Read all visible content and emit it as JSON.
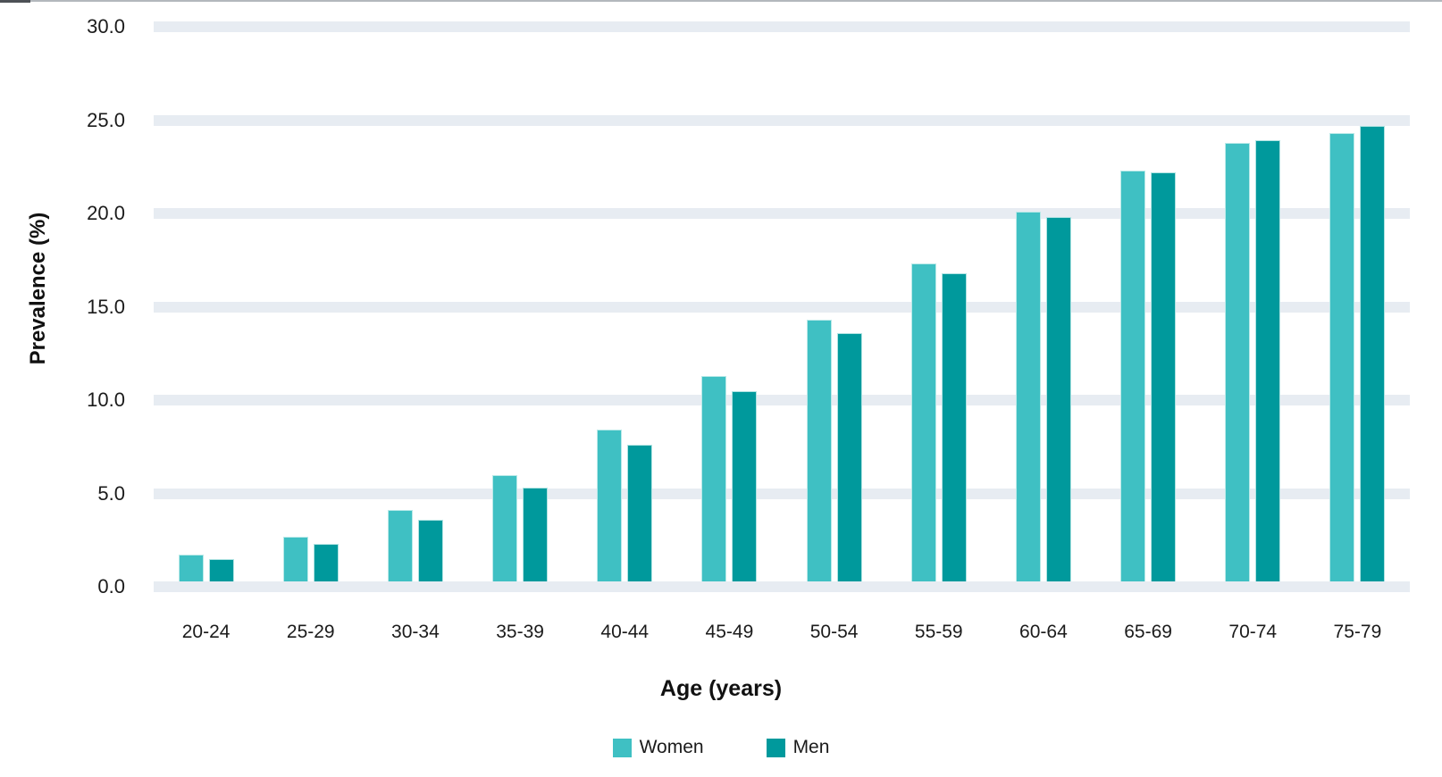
{
  "chart_data": {
    "type": "bar",
    "title": "",
    "xlabel": "Age (years)",
    "ylabel": "Prevalence (%)",
    "categories": [
      "20-24",
      "25-29",
      "30-34",
      "35-39",
      "40-44",
      "45-49",
      "50-54",
      "55-59",
      "60-64",
      "65-69",
      "70-74",
      "75-79"
    ],
    "series": [
      {
        "name": "Women",
        "color": "#3fc0c3",
        "values": [
          1.7,
          2.7,
          4.1,
          6.0,
          8.4,
          11.3,
          14.3,
          17.3,
          20.1,
          22.3,
          23.8,
          24.3
        ]
      },
      {
        "name": "Men",
        "color": "#00999c",
        "values": [
          1.5,
          2.3,
          3.6,
          5.3,
          7.6,
          10.5,
          13.6,
          16.8,
          19.8,
          22.2,
          23.9,
          24.7
        ]
      }
    ],
    "ylim": [
      0,
      30
    ],
    "ytick_step": 5,
    "ytick_labels": [
      "0.0",
      "5.0",
      "10.0",
      "15.0",
      "20.0",
      "25.0",
      "30.0"
    ],
    "grid": "horizontal-bands",
    "grid_band_color": "#e7ecf2",
    "legend_position": "bottom"
  }
}
